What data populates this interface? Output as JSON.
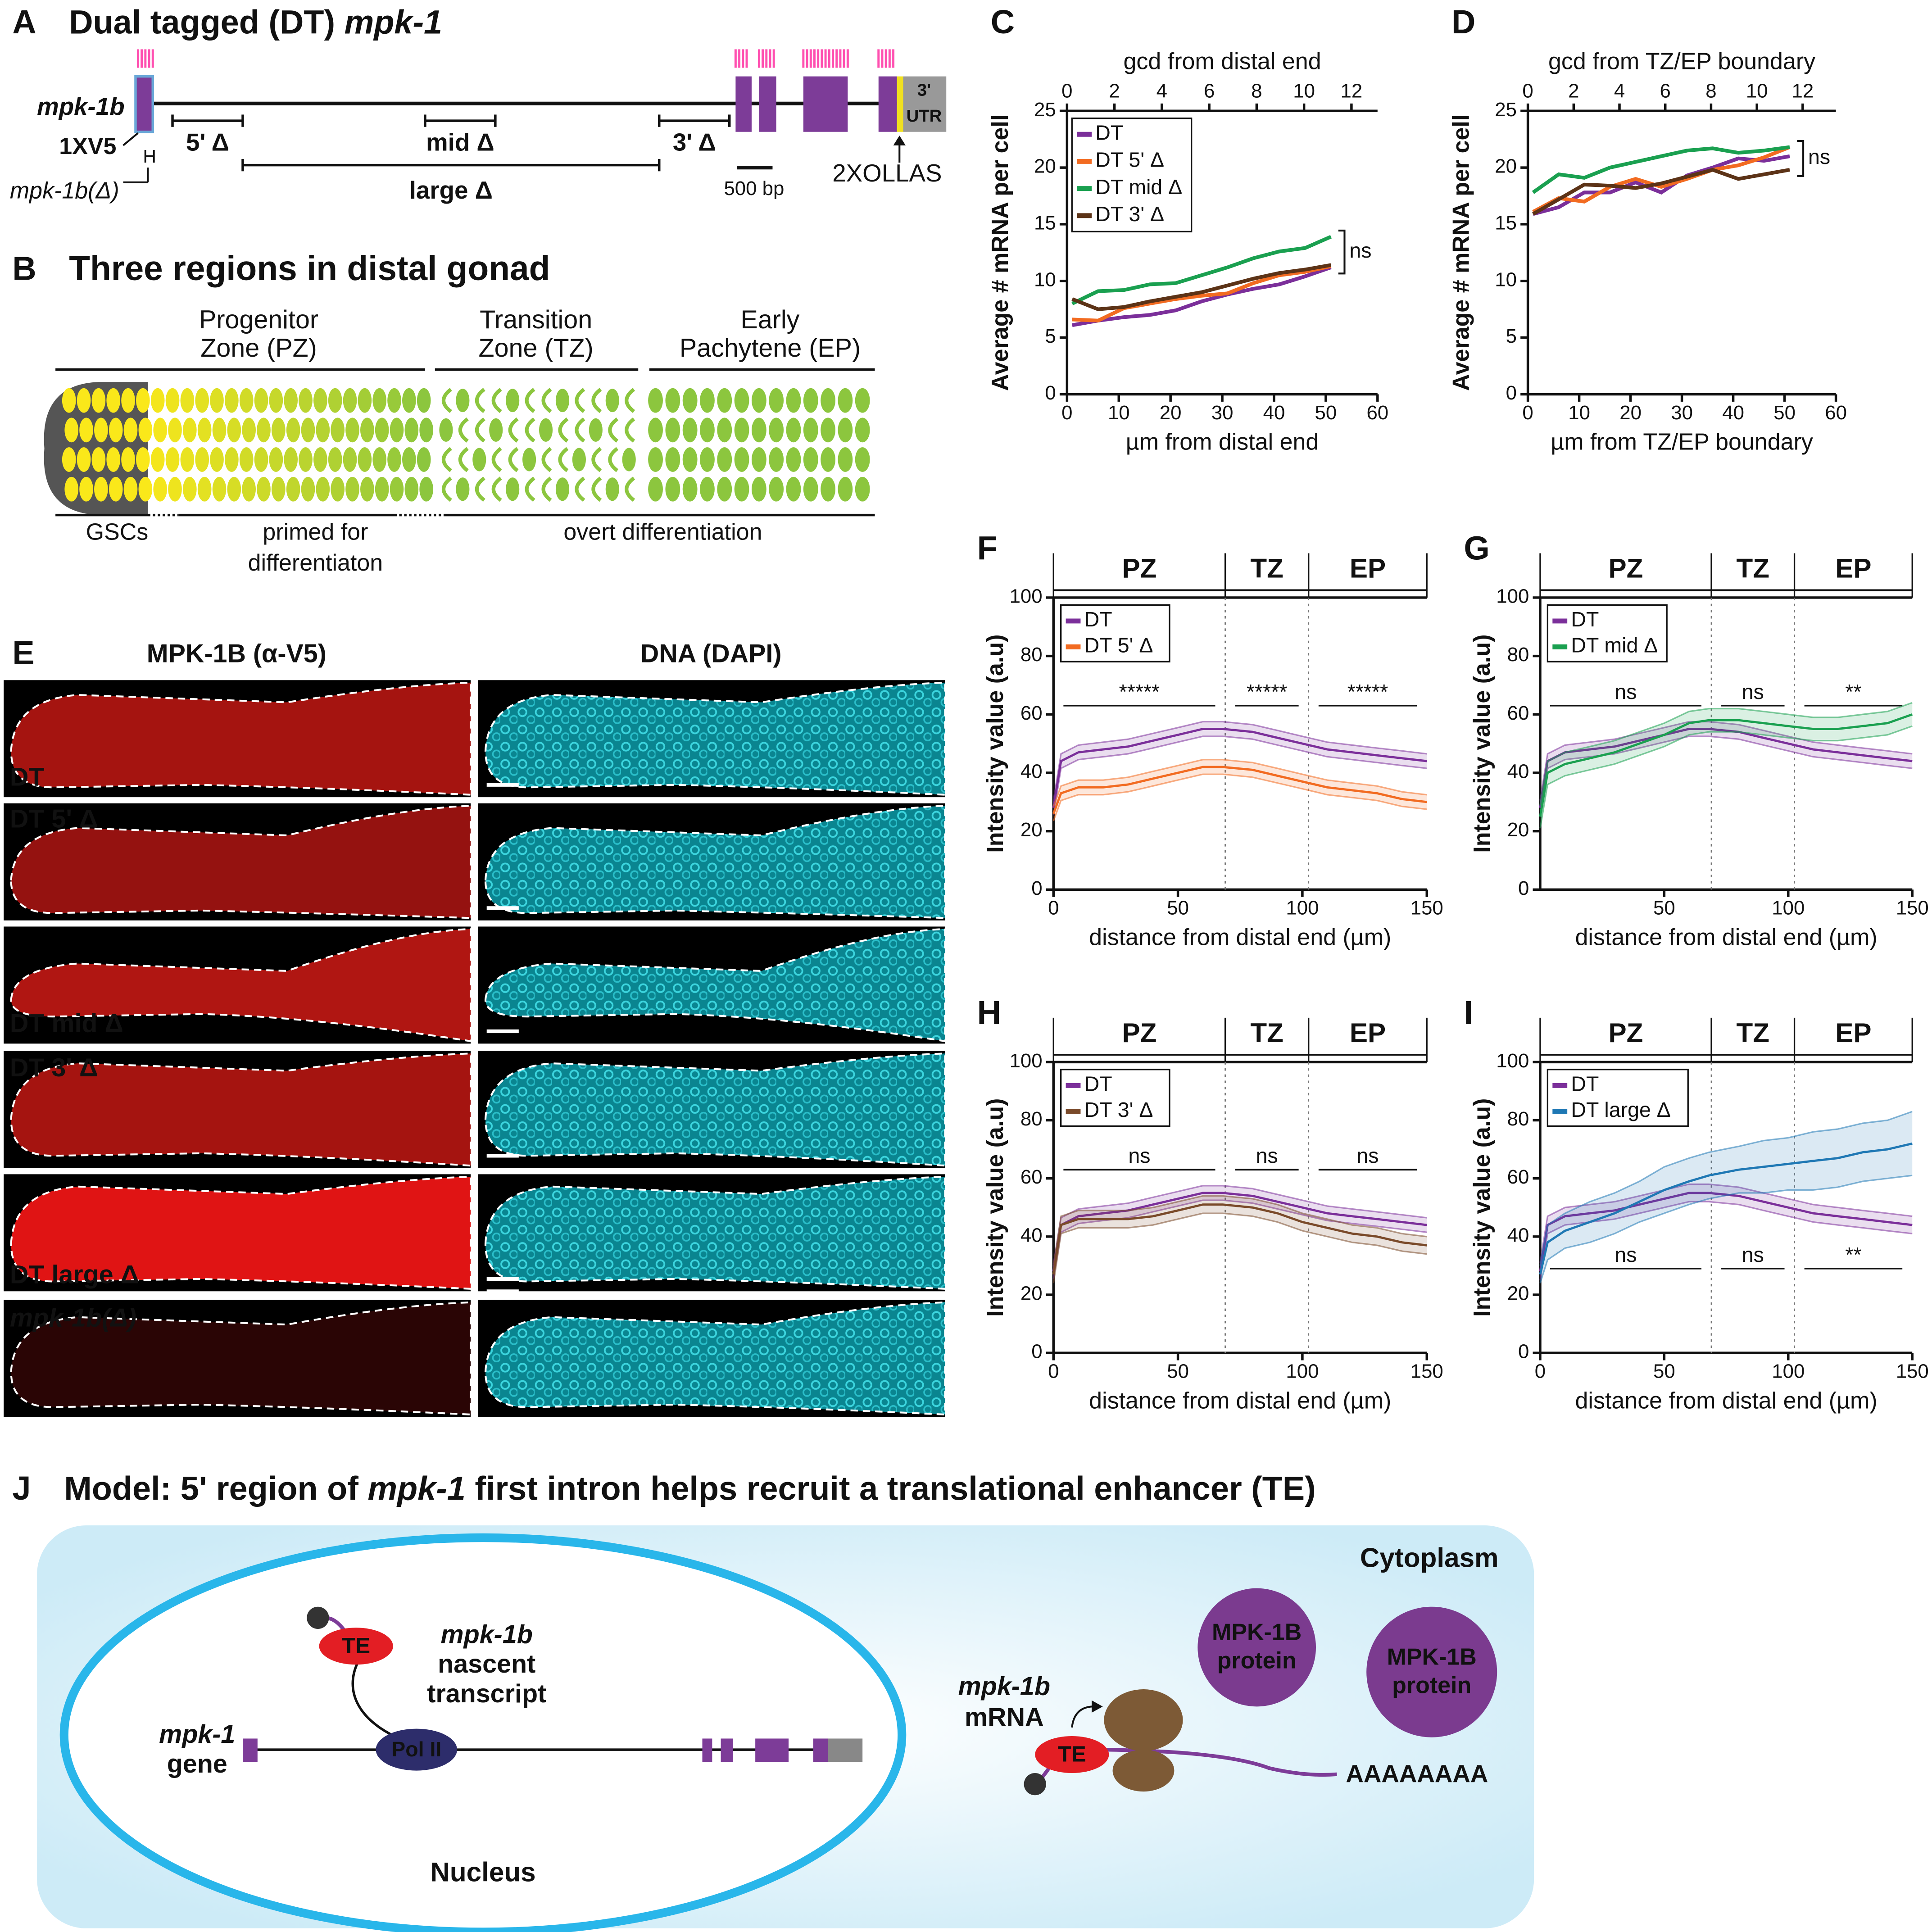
{
  "panels": {
    "A": {
      "letter": "A",
      "title": [
        "Dual tagged (DT) ",
        "mpk-1"
      ],
      "gene": "mpk-1b",
      "tag_5": "1XV5",
      "tag_3": "2XOLLAS",
      "h": "H",
      "deletion_allele": "mpk-1b(Δ)",
      "deletions": [
        "5' Δ",
        "mid Δ",
        "3' Δ",
        "large Δ"
      ],
      "scale_bar": "500 bp",
      "utr": [
        "3'",
        "UTR"
      ]
    },
    "B": {
      "letter": "B",
      "title": "Three regions in distal gonad",
      "zones": [
        [
          "Progenitor",
          "Zone (PZ)"
        ],
        [
          "Transition",
          "Zone (TZ)"
        ],
        [
          "Early",
          "Pachytene (EP)"
        ]
      ],
      "stages": [
        "GSCs",
        [
          "primed for",
          "differentiaton"
        ],
        "overt differentiation"
      ]
    },
    "E": {
      "letter": "E",
      "channels": [
        "MPK-1B (α-V5)",
        "DNA (DAPI)"
      ],
      "rows": [
        "DT",
        "DT 5' Δ",
        "DT mid Δ",
        "DT 3' Δ",
        "DT large Δ",
        "mpk-1b(Δ)"
      ]
    },
    "J": {
      "letter": "J",
      "title": [
        "Model: 5' region of ",
        "mpk-1",
        " first intron helps recruit a translational enhancer (TE)"
      ],
      "cytoplasm": "Cytoplasm",
      "nucleus": "Nucleus",
      "te": "TE",
      "nascent": [
        "mpk-1b",
        "nascent",
        "transcript"
      ],
      "pol": "Pol II",
      "gene": [
        "mpk-1",
        "gene"
      ],
      "mrna": [
        "mpk-1b",
        "mRNA"
      ],
      "protein": [
        "MPK-1B",
        "protein"
      ],
      "polya": "AAAAAAAA"
    }
  },
  "chart_data": [
    {
      "type": "line",
      "letter": "C",
      "xlabel": "µm from distal end",
      "x2label": "gcd from distal end",
      "ylabel": "Average # mRNA per cell",
      "x": [
        1,
        6,
        11,
        16,
        21,
        26,
        31,
        36,
        41,
        46,
        51
      ],
      "xlim": [
        0,
        60
      ],
      "xticks": [
        0,
        10,
        20,
        30,
        40,
        50,
        60
      ],
      "x2lim": [
        0,
        13.1
      ],
      "x2ticks": [
        0,
        2,
        4,
        6,
        8,
        10,
        12
      ],
      "ylim": [
        0,
        25
      ],
      "yticks": [
        0,
        5,
        10,
        15,
        20,
        25
      ],
      "legend": "upper left",
      "annotation": "ns",
      "series": [
        {
          "name": "DT",
          "color": "#7b2f9a",
          "values": [
            6.1,
            6.5,
            6.8,
            7.0,
            7.4,
            8.2,
            8.8,
            9.3,
            9.7,
            10.4,
            11.2
          ]
        },
        {
          "name": "DT 5' Δ",
          "color": "#f26b21",
          "values": [
            6.6,
            6.5,
            7.6,
            8.0,
            8.4,
            8.7,
            8.9,
            9.8,
            10.5,
            10.8,
            11.3
          ]
        },
        {
          "name": "DT mid Δ",
          "color": "#1aa050",
          "values": [
            8.0,
            9.1,
            9.2,
            9.7,
            9.8,
            10.5,
            11.2,
            12.0,
            12.6,
            12.9,
            13.9
          ]
        },
        {
          "name": "DT 3' Δ",
          "color": "#5c3317",
          "values": [
            8.4,
            7.5,
            7.7,
            8.2,
            8.6,
            9.0,
            9.6,
            10.2,
            10.7,
            11.0,
            11.4
          ]
        }
      ]
    },
    {
      "type": "line",
      "letter": "D",
      "xlabel": "µm from TZ/EP boundary",
      "x2label": "gcd from TZ/EP boundary",
      "ylabel": "Average # mRNA per cell",
      "x": [
        1,
        6,
        11,
        16,
        21,
        26,
        31,
        36,
        41,
        46,
        51
      ],
      "xlim": [
        0,
        60
      ],
      "xticks": [
        0,
        10,
        20,
        30,
        40,
        50,
        60
      ],
      "x2lim": [
        0,
        13.45
      ],
      "x2ticks": [
        0,
        2,
        4,
        6,
        8,
        10,
        12
      ],
      "ylim": [
        0,
        25
      ],
      "yticks": [
        0,
        5,
        10,
        15,
        20,
        25
      ],
      "annotation": "ns",
      "series": [
        {
          "name": "DT",
          "color": "#7b2f9a",
          "values": [
            15.9,
            16.5,
            17.8,
            17.8,
            18.7,
            17.8,
            19.3,
            20.0,
            20.8,
            20.6,
            21.0
          ]
        },
        {
          "name": "DT 5' Δ",
          "color": "#f26b21",
          "values": [
            16.1,
            17.3,
            17.0,
            18.3,
            19.0,
            18.3,
            19.0,
            19.8,
            20.2,
            20.9,
            21.8
          ]
        },
        {
          "name": "DT mid Δ",
          "color": "#1aa050",
          "values": [
            17.8,
            19.4,
            19.1,
            20.0,
            20.5,
            21.0,
            21.5,
            21.7,
            21.3,
            21.5,
            21.8
          ]
        },
        {
          "name": "DT 3' Δ",
          "color": "#5c3317",
          "values": [
            15.9,
            17.2,
            18.5,
            18.4,
            18.2,
            18.6,
            19.2,
            19.8,
            19.0,
            19.4,
            19.8
          ]
        }
      ]
    },
    {
      "type": "line",
      "letter": "F",
      "xlabel": "distance from distal end (µm)",
      "ylabel": "Intensity value (a.u)",
      "x": [
        0,
        3,
        10,
        20,
        30,
        40,
        50,
        60,
        68,
        80,
        90,
        100,
        110,
        120,
        130,
        140,
        150
      ],
      "xlim": [
        0,
        150
      ],
      "xticks": [
        0,
        50,
        100,
        150
      ],
      "ylim": [
        0,
        100
      ],
      "yticks": [
        0,
        20,
        40,
        60,
        80,
        100
      ],
      "regions": [
        {
          "label": "PZ",
          "end": 69
        },
        {
          "label": "TZ",
          "end": 102.5
        },
        {
          "label": "EP",
          "end": 150
        }
      ],
      "significance": [
        "*****",
        "*****",
        "*****"
      ],
      "significance_position": "top",
      "legend": "upper left",
      "series": [
        {
          "name": "DT",
          "color": "#7b2f9a",
          "values": [
            28,
            44,
            47,
            48,
            49,
            51,
            53,
            55,
            55,
            54,
            52,
            50,
            48,
            47,
            46,
            45,
            44
          ],
          "errors": [
            2.5,
            2.5,
            2.5,
            2.5,
            2.5,
            2.5,
            2.5,
            2.5,
            2.5,
            2.5,
            2.5,
            2.5,
            2.5,
            2.5,
            2.5,
            2.5,
            2.5
          ]
        },
        {
          "name": "DT 5' Δ",
          "color": "#f26b21",
          "values": [
            26,
            33,
            35,
            35,
            36,
            38,
            40,
            42,
            42,
            41,
            39,
            37,
            35,
            34,
            33,
            31,
            30
          ],
          "errors": [
            2.5,
            2.5,
            2.5,
            2.5,
            2.5,
            2.5,
            2.5,
            2.5,
            2.5,
            2.5,
            2.5,
            2.5,
            2.5,
            2.5,
            2.5,
            2.5,
            2.5
          ]
        }
      ]
    },
    {
      "type": "line",
      "letter": "G",
      "xlabel": "distance from distal end (µm)",
      "ylabel": "Intensity value (a.u)",
      "x": [
        0,
        3,
        10,
        20,
        30,
        40,
        50,
        60,
        68,
        80,
        90,
        100,
        110,
        120,
        130,
        140,
        150
      ],
      "xlim": [
        0,
        150
      ],
      "xticks": [
        50,
        100,
        150
      ],
      "ylim": [
        0,
        100
      ],
      "yticks": [
        0,
        20,
        40,
        60,
        80,
        100
      ],
      "regions": [
        {
          "label": "PZ",
          "end": 69
        },
        {
          "label": "TZ",
          "end": 102.5
        },
        {
          "label": "EP",
          "end": 150
        }
      ],
      "significance": [
        "ns",
        "ns",
        "**"
      ],
      "significance_position": "top",
      "legend": "upper left",
      "series": [
        {
          "name": "DT",
          "color": "#7b2f9a",
          "values": [
            28,
            44,
            47,
            48,
            49,
            51,
            53,
            55,
            55,
            54,
            52,
            50,
            48,
            47,
            46,
            45,
            44
          ],
          "errors": [
            2.5,
            2.5,
            2.5,
            2.5,
            2.5,
            2.5,
            2.5,
            2.5,
            2.5,
            2.5,
            2.5,
            2.5,
            2.5,
            2.5,
            2.5,
            2.5,
            2.5
          ]
        },
        {
          "name": "DT mid Δ",
          "color": "#1aa050",
          "values": [
            25,
            40,
            43,
            45,
            47,
            50,
            53,
            57,
            58,
            58,
            57,
            56,
            55,
            55,
            56,
            57,
            60
          ],
          "errors": [
            4,
            4,
            4,
            4,
            4,
            4,
            4,
            4,
            4,
            4,
            4,
            4,
            4,
            4,
            4,
            4,
            4
          ]
        }
      ]
    },
    {
      "type": "line",
      "letter": "H",
      "xlabel": "distance from distal end (µm)",
      "ylabel": "Intensity value (a.u)",
      "x": [
        0,
        3,
        10,
        20,
        30,
        40,
        50,
        60,
        68,
        80,
        90,
        100,
        110,
        120,
        130,
        140,
        150
      ],
      "xlim": [
        0,
        150
      ],
      "xticks": [
        0,
        50,
        100,
        150
      ],
      "ylim": [
        0,
        100
      ],
      "yticks": [
        0,
        20,
        40,
        60,
        80,
        100
      ],
      "regions": [
        {
          "label": "PZ",
          "end": 69
        },
        {
          "label": "TZ",
          "end": 102.5
        },
        {
          "label": "EP",
          "end": 150
        }
      ],
      "significance": [
        "ns",
        "ns",
        "ns"
      ],
      "significance_position": "top",
      "legend": "upper left",
      "series": [
        {
          "name": "DT",
          "color": "#7b2f9a",
          "values": [
            28,
            44,
            47,
            48,
            49,
            51,
            53,
            55,
            55,
            54,
            52,
            50,
            48,
            47,
            46,
            45,
            44
          ],
          "errors": [
            2.5,
            2.5,
            2.5,
            2.5,
            2.5,
            2.5,
            2.5,
            2.5,
            2.5,
            2.5,
            2.5,
            2.5,
            2.5,
            2.5,
            2.5,
            2.5,
            2.5
          ]
        },
        {
          "name": "DT 3' Δ",
          "color": "#7a4a2a",
          "values": [
            27,
            44,
            46,
            46,
            46,
            47,
            49,
            51,
            51,
            50,
            48,
            45,
            43,
            41,
            40,
            38,
            37
          ],
          "errors": [
            3,
            3,
            3,
            3,
            3,
            3,
            3,
            3,
            3,
            3,
            3,
            3,
            3,
            3,
            3,
            3,
            3
          ]
        }
      ]
    },
    {
      "type": "line",
      "letter": "I",
      "xlabel": "distance from distal end (µm)",
      "ylabel": "Intensity value (a.u)",
      "x": [
        0,
        3,
        10,
        20,
        30,
        40,
        50,
        60,
        68,
        80,
        90,
        100,
        110,
        120,
        130,
        140,
        150
      ],
      "xlim": [
        0,
        150
      ],
      "xticks": [
        0,
        50,
        100,
        150
      ],
      "ylim": [
        0,
        100
      ],
      "yticks": [
        0,
        20,
        40,
        60,
        80,
        100
      ],
      "regions": [
        {
          "label": "PZ",
          "end": 69
        },
        {
          "label": "TZ",
          "end": 102.5
        },
        {
          "label": "EP",
          "end": 150
        }
      ],
      "significance": [
        "ns",
        "ns",
        "**"
      ],
      "significance_position": "bottom",
      "legend": "upper left",
      "series": [
        {
          "name": "DT",
          "color": "#7b2f9a",
          "values": [
            28,
            44,
            47,
            48,
            49,
            51,
            53,
            55,
            55,
            54,
            52,
            50,
            48,
            47,
            46,
            45,
            44
          ],
          "errors": [
            3,
            3,
            3,
            3,
            3,
            3,
            3,
            3,
            3,
            3,
            3,
            3,
            3,
            3,
            3,
            3,
            3
          ]
        },
        {
          "name": "DT large Δ",
          "color": "#1f78b4",
          "values": [
            27,
            38,
            42,
            45,
            48,
            52,
            56,
            59,
            61,
            63,
            64,
            65,
            66,
            67,
            69,
            70,
            72
          ],
          "errors": [
            3,
            6,
            6,
            7,
            7,
            7,
            8,
            8,
            8,
            8,
            9,
            9,
            10,
            10,
            10,
            10,
            11
          ]
        }
      ]
    }
  ]
}
